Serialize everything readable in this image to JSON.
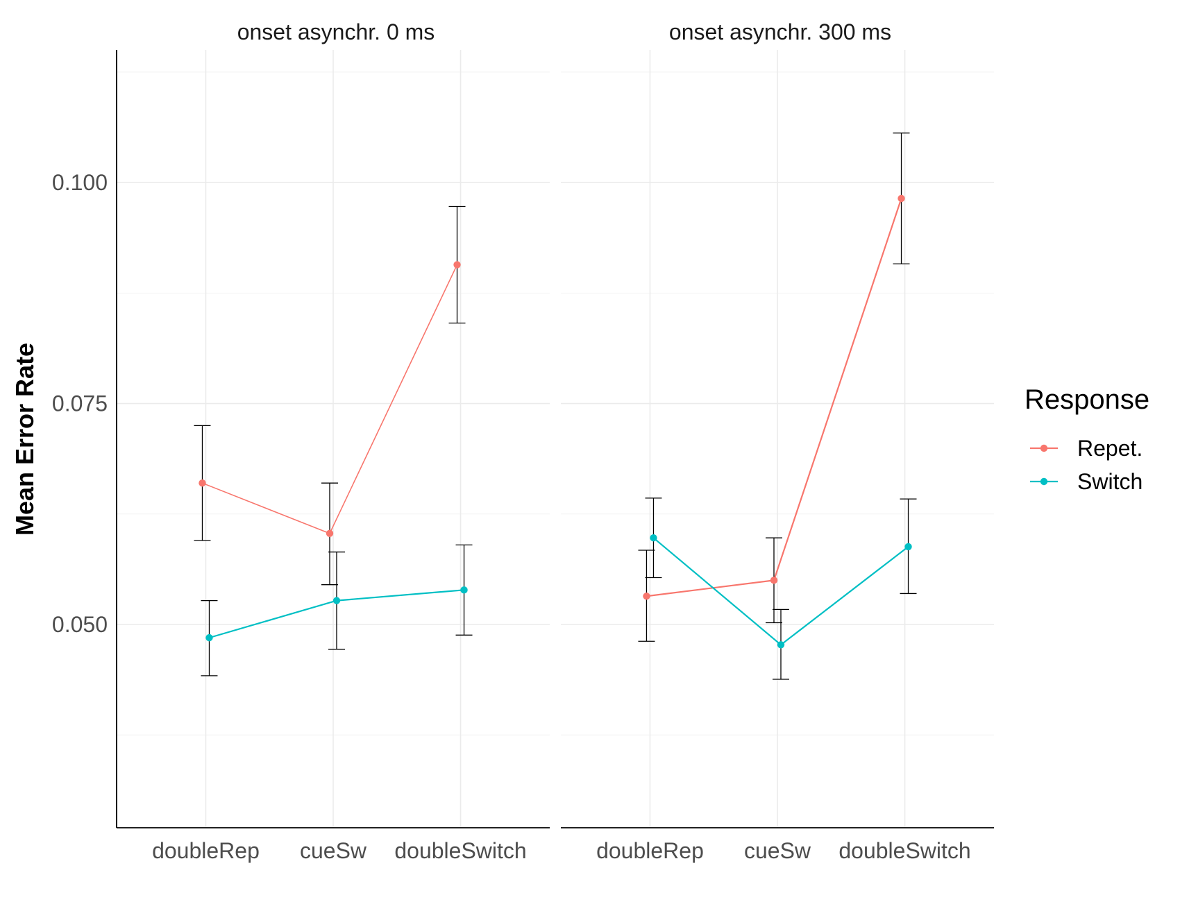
{
  "chart_data": {
    "type": "line",
    "ylabel": "Mean Error Rate",
    "xlabel": "",
    "ylim": [
      0.027,
      0.115
    ],
    "yticks": [
      0.05,
      0.075,
      0.1
    ],
    "ytick_labels": [
      "0.050",
      "0.075",
      "0.100"
    ],
    "categories": [
      "doubleRep",
      "cueSw",
      "doubleSwitch"
    ],
    "legend": {
      "title": "Response",
      "placement": "right",
      "entries": [
        "Repet.",
        "Switch"
      ]
    },
    "colors": {
      "Repet.": "#F8766D",
      "Switch": "#00BFC4"
    },
    "grid": true,
    "facets": [
      {
        "title": "onset asynchr. 0 ms",
        "series": [
          {
            "name": "Repet.",
            "values": [
              0.066,
              0.0603,
              0.0907
            ],
            "lower": [
              0.0595,
              0.0545,
              0.0841
            ],
            "upper": [
              0.0725,
              0.066,
              0.0973
            ]
          },
          {
            "name": "Switch",
            "values": [
              0.0485,
              0.0527,
              0.0539
            ],
            "lower": [
              0.0442,
              0.0472,
              0.0488
            ],
            "upper": [
              0.0527,
              0.0582,
              0.059
            ]
          }
        ]
      },
      {
        "title": "onset asynchr. 300 ms",
        "series": [
          {
            "name": "Repet.",
            "values": [
              0.0532,
              0.055,
              0.0982
            ],
            "lower": [
              0.0481,
              0.0502,
              0.0908
            ],
            "upper": [
              0.0584,
              0.0598,
              0.1056
            ]
          },
          {
            "name": "Switch",
            "values": [
              0.0598,
              0.0477,
              0.0588
            ],
            "lower": [
              0.0553,
              0.0438,
              0.0535
            ],
            "upper": [
              0.0643,
              0.0517,
              0.0642
            ]
          }
        ]
      }
    ]
  }
}
